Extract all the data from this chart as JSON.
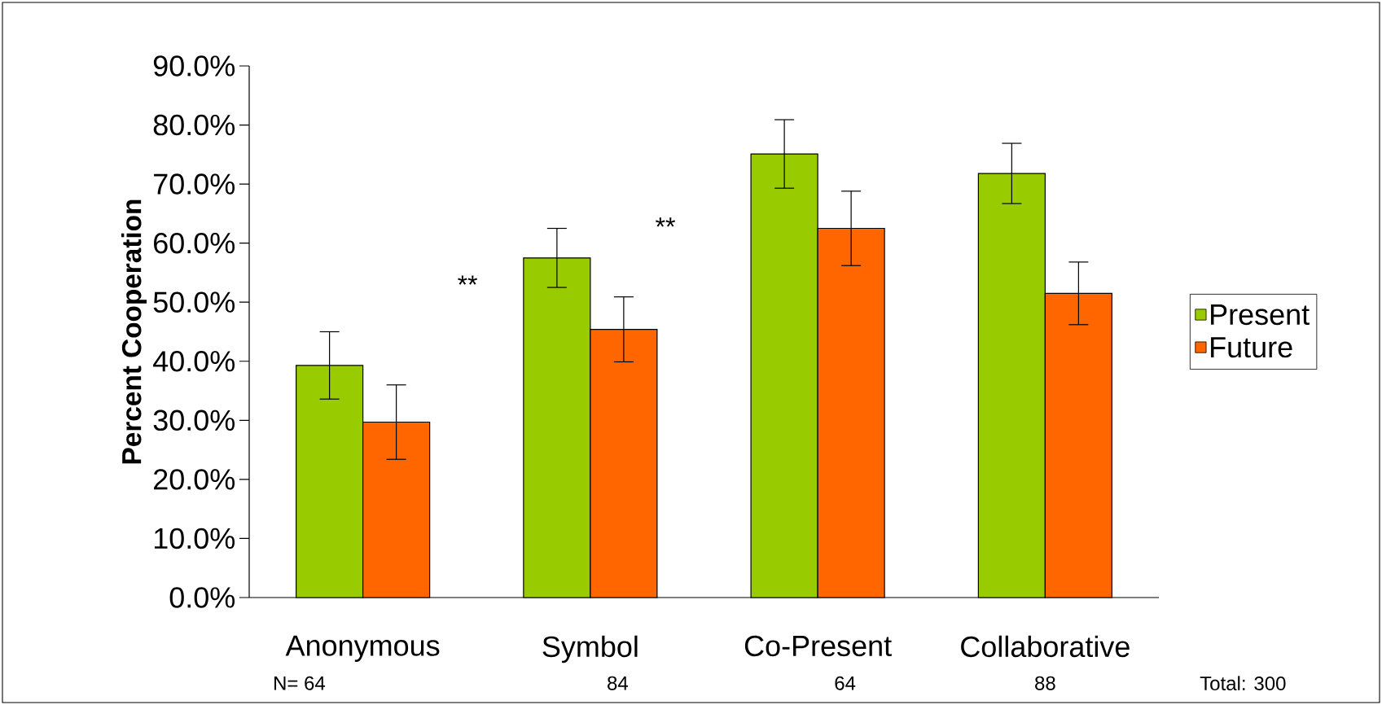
{
  "chart_data": {
    "type": "bar",
    "ylabel": "Percent Cooperation",
    "categories": [
      "Anonymous",
      "Symbol",
      "Co-Present",
      "Collaborative"
    ],
    "series": [
      {
        "name": "Present",
        "color": "#99cc00",
        "values": [
          39.3,
          57.5,
          75.1,
          71.8
        ],
        "errors": [
          5.7,
          5,
          5.8,
          5.1
        ]
      },
      {
        "name": "Future",
        "color": "#ff6600",
        "values": [
          29.7,
          45.4,
          62.5,
          51.5
        ],
        "errors": [
          6.3,
          5.5,
          6.3,
          5.3
        ]
      }
    ],
    "ylim": [
      0,
      90
    ],
    "yticks": [
      {
        "value": 0,
        "label": "0.0%"
      },
      {
        "value": 10,
        "label": "10.0%"
      },
      {
        "value": 20,
        "label": "20.0%"
      },
      {
        "value": 30,
        "label": "30.0%"
      },
      {
        "value": 40,
        "label": "40.0%"
      },
      {
        "value": 50,
        "label": "50.0%"
      },
      {
        "value": 60,
        "label": "60.0%"
      },
      {
        "value": 70,
        "label": "70.0%"
      },
      {
        "value": 80,
        "label": "80.0%"
      },
      {
        "value": 90,
        "label": "90.0%"
      }
    ],
    "annotations": [
      "**",
      "**",
      "N= 64",
      "84",
      "64",
      "88",
      "Total: 300"
    ],
    "legend": "right",
    "grid": false
  }
}
